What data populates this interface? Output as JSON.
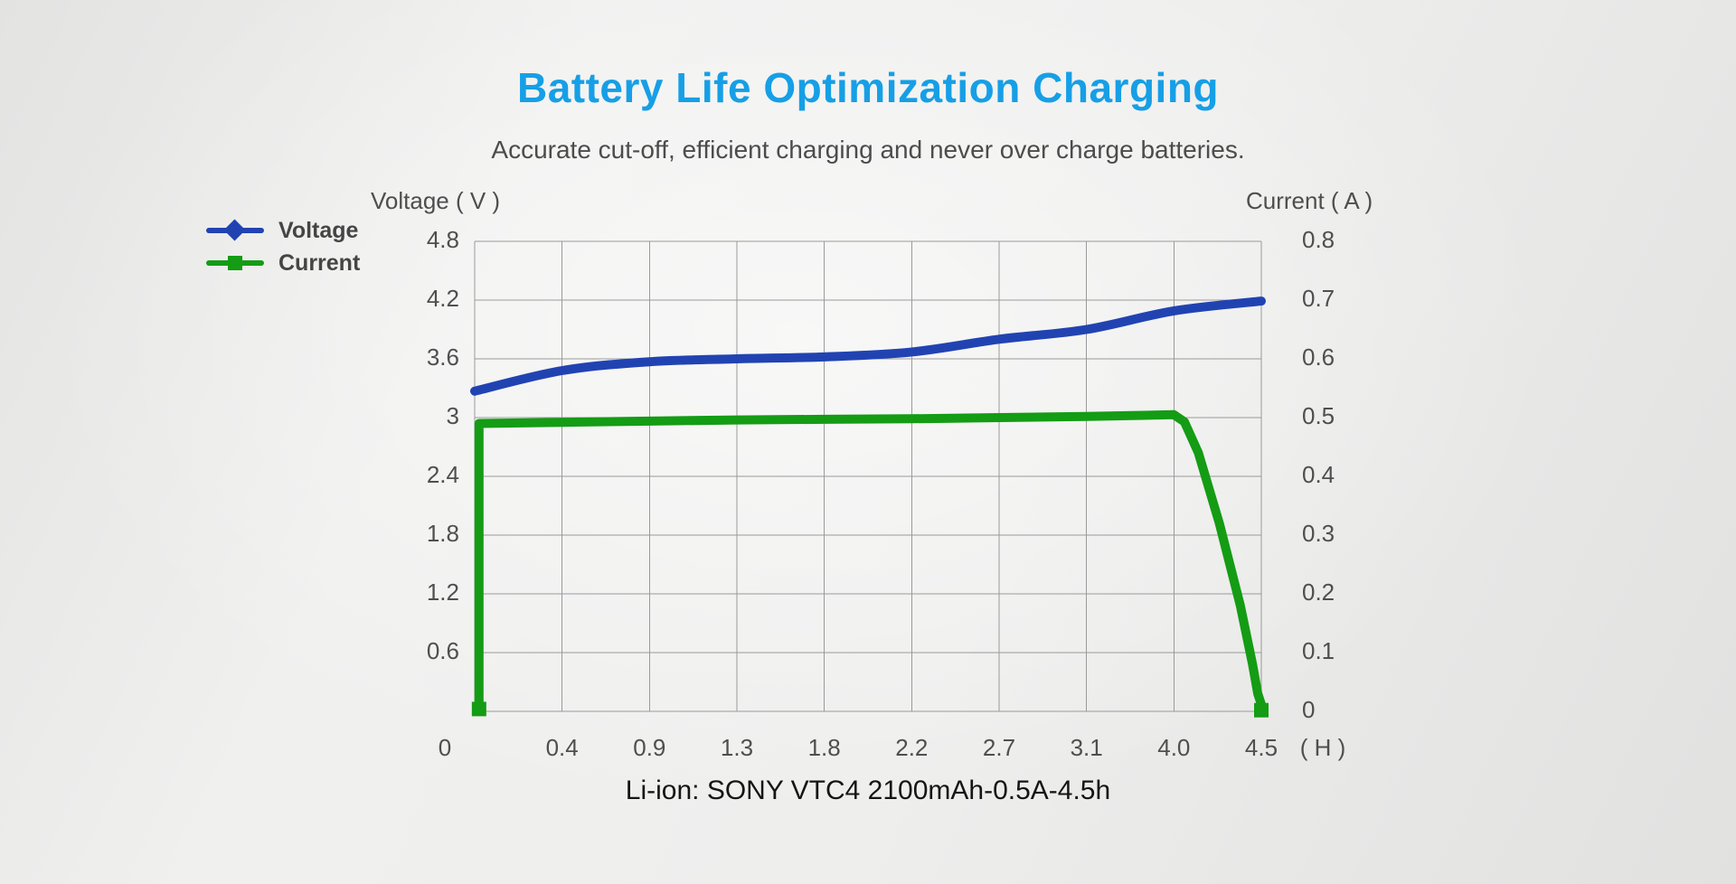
{
  "header": {
    "title": "Battery Life Optimization Charging",
    "title_color": "#169fe6",
    "subtitle": "Accurate cut-off, efficient charging and never over charge batteries."
  },
  "legend": {
    "items": [
      {
        "label": "Voltage",
        "marker": "diamond",
        "color": "#2143b2"
      },
      {
        "label": "Current",
        "marker": "square",
        "color": "#149c14"
      }
    ]
  },
  "chart_data": {
    "type": "line",
    "title": "Battery Life Optimization Charging",
    "x_categories": [
      "0",
      "0.4",
      "0.9",
      "1.3",
      "1.8",
      "2.2",
      "2.7",
      "3.1",
      "4.0",
      "4.5"
    ],
    "x_unit_label": "( H )",
    "grid": true,
    "grid_color": "#9a9a9a",
    "left_axis": {
      "title": "Voltage ( V )",
      "range": [
        0,
        4.8
      ],
      "tick_labels": [
        "4.8",
        "4.2",
        "3.6",
        "3",
        "2.4",
        "1.8",
        "1.2",
        "0.6"
      ]
    },
    "right_axis": {
      "title": "Current ( A )",
      "range": [
        0,
        0.8
      ],
      "tick_labels": [
        "0.8",
        "0.7",
        "0.6",
        "0.5",
        "0.4",
        "0.3",
        "0.2",
        "0.1",
        "0"
      ]
    },
    "legend_position": "top-left",
    "series": [
      {
        "name": "Voltage",
        "axis": "left",
        "unit": "V",
        "color": "#2143b2",
        "marker": "diamond",
        "line_width": 10,
        "smooth": true,
        "values": [
          3.27,
          3.48,
          3.57,
          3.6,
          3.62,
          3.67,
          3.8,
          3.9,
          4.09,
          4.19
        ]
      },
      {
        "name": "Current",
        "axis": "right",
        "unit": "A",
        "color": "#149c14",
        "marker": "square",
        "line_width": 10,
        "smooth": false,
        "values": [
          0,
          0.49,
          0.492,
          0.494,
          0.496,
          0.498,
          0.5,
          0.502,
          0.505,
          0
        ],
        "shape_note": "vertical rise from 0 to 0.49 A at t=0, constant ~0.5 A until 4.0 h, steep cutoff drop to 0 A at 4.5 h",
        "path_points": [
          {
            "i": 0.05,
            "a": 0.004
          },
          {
            "i": 0.05,
            "a": 0.49
          },
          {
            "i": 1,
            "a": 0.492
          },
          {
            "i": 2,
            "a": 0.494
          },
          {
            "i": 3,
            "a": 0.496
          },
          {
            "i": 4,
            "a": 0.497
          },
          {
            "i": 5,
            "a": 0.498
          },
          {
            "i": 6,
            "a": 0.5
          },
          {
            "i": 7,
            "a": 0.502
          },
          {
            "i": 8,
            "a": 0.505
          },
          {
            "i": 8.12,
            "a": 0.493
          },
          {
            "i": 8.28,
            "a": 0.44
          },
          {
            "i": 8.52,
            "a": 0.32
          },
          {
            "i": 8.76,
            "a": 0.18
          },
          {
            "i": 8.9,
            "a": 0.08
          },
          {
            "i": 8.96,
            "a": 0.03
          },
          {
            "i": 9,
            "a": 0.012
          }
        ],
        "end_markers": [
          {
            "i": 0.05,
            "a": 0.004
          },
          {
            "i": 9,
            "a": 0.002
          }
        ]
      }
    ]
  },
  "footer": {
    "caption": "Li-ion: SONY VTC4 2100mAh-0.5A-4.5h"
  }
}
